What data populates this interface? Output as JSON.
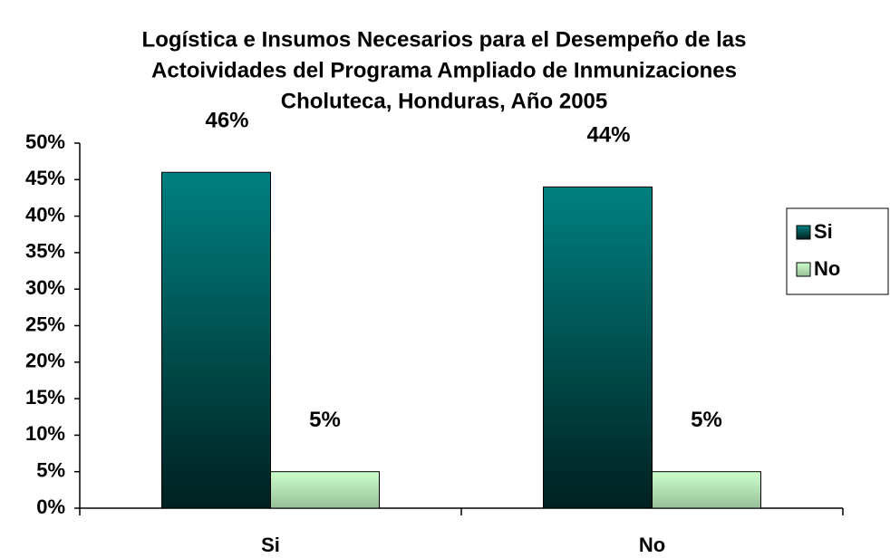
{
  "chart_data": {
    "type": "bar",
    "title": [
      "Logística e Insumos Necesarios para el Desempeño de las",
      "Actoividades del Programa Ampliado de Inmunizaciones",
      "Choluteca, Honduras, Año 2005"
    ],
    "categories": [
      "Si",
      "No"
    ],
    "series": [
      {
        "name": "Si",
        "color": "#008080",
        "values": [
          46,
          44
        ],
        "value_labels": [
          "46%",
          "44%"
        ]
      },
      {
        "name": "No",
        "color": "#ccffcc",
        "values": [
          5,
          5
        ],
        "value_labels": [
          "5%",
          "5%"
        ]
      }
    ],
    "ylim": [
      0,
      50
    ],
    "yticks": [
      {
        "value": 0,
        "label": "0%"
      },
      {
        "value": 5,
        "label": "5%"
      },
      {
        "value": 10,
        "label": "10%"
      },
      {
        "value": 15,
        "label": "15%"
      },
      {
        "value": 20,
        "label": "20%"
      },
      {
        "value": 25,
        "label": "25%"
      },
      {
        "value": 30,
        "label": "30%"
      },
      {
        "value": 35,
        "label": "35%"
      },
      {
        "value": 40,
        "label": "40%"
      },
      {
        "value": 45,
        "label": "45%"
      },
      {
        "value": 50,
        "label": "50%"
      }
    ],
    "grid": false,
    "legend": "right"
  }
}
